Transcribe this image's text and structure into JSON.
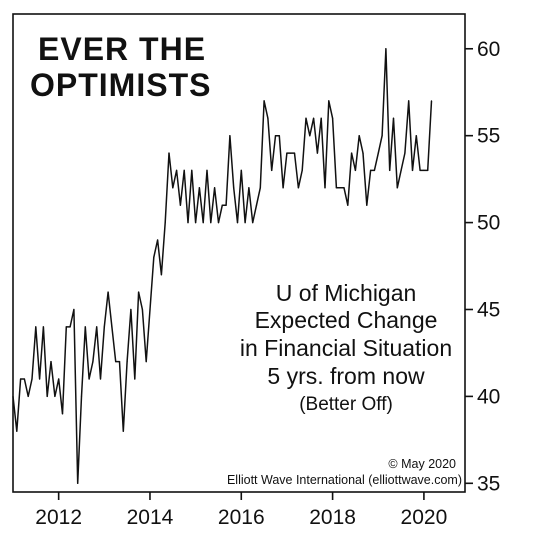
{
  "chart_data": {
    "type": "line",
    "title": [
      "EVER THE",
      "OPTIMISTS"
    ],
    "annotation": [
      "U of Michigan",
      "Expected Change",
      "in Financial Situation",
      "5 yrs. from now",
      "(Better Off)"
    ],
    "copyright": "© May 2020",
    "source": "Elliott Wave International (elliottwave.com)",
    "xlim": [
      2011.0,
      2020.9
    ],
    "ylim": [
      34.5,
      62
    ],
    "x_ticks": [
      2012,
      2014,
      2016,
      2018,
      2020
    ],
    "y_ticks": [
      35,
      40,
      45,
      50,
      55,
      60
    ],
    "y_axis_side": "right",
    "grid": false,
    "series": [
      {
        "color": "#111111",
        "x_start": 2011.0,
        "x_step": 0.0833333,
        "values": [
          40,
          38,
          41,
          41,
          40,
          41,
          44,
          41,
          44,
          40,
          42,
          40,
          41,
          39,
          44,
          44,
          45,
          35,
          40,
          44,
          41,
          42,
          44,
          41,
          44,
          46,
          44,
          42,
          42,
          38,
          42,
          45,
          41,
          46,
          45,
          42,
          45,
          48,
          49,
          47,
          50,
          54,
          52,
          53,
          51,
          53,
          50,
          53,
          50,
          52,
          50,
          53,
          50,
          52,
          50,
          51,
          51,
          55,
          52,
          50,
          53,
          50,
          52,
          50,
          51,
          52,
          57,
          56,
          53,
          55,
          55,
          52,
          54,
          54,
          54,
          52,
          53,
          56,
          55,
          56,
          54,
          56,
          52,
          57,
          56,
          52,
          52,
          52,
          51,
          54,
          53,
          55,
          54,
          51,
          53,
          53,
          54,
          55,
          60,
          53,
          56,
          52,
          53,
          54,
          57,
          53,
          55,
          53,
          53,
          53,
          57
        ]
      }
    ]
  }
}
